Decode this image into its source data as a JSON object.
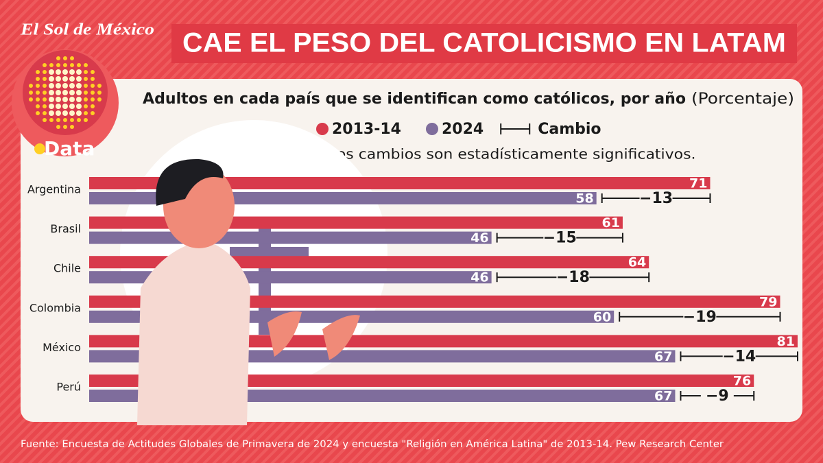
{
  "brand": "El Sol de México",
  "brand_section": "Data",
  "chart_data": {
    "type": "bar",
    "orientation": "horizontal",
    "title": "CAE EL PESO DEL CATOLICISMO EN LATAM",
    "subtitle": "Adultos en cada país que se identifican como católicos, por año",
    "unit_note": "(Porcentaje)",
    "note": "Nota: Todos los cambios son estadísticamente significativos.",
    "source": "Fuente: Encuesta de Actitudes Globales de Primavera de 2024 y encuesta \"Religión en América Latina\" de 2013-14.  Pew Research Center",
    "categories": [
      "Argentina",
      "Brasil",
      "Chile",
      "Colombia",
      "México",
      "Perú"
    ],
    "series": [
      {
        "name": "2013-14",
        "color": "#d83a4b",
        "values": [
          71,
          61,
          64,
          79,
          81,
          76
        ]
      },
      {
        "name": "2024",
        "color": "#7f6d9c",
        "values": [
          58,
          46,
          46,
          60,
          67,
          67
        ]
      }
    ],
    "change": {
      "name": "Cambio",
      "values": [
        -13,
        -15,
        -18,
        -19,
        -14,
        -9
      ],
      "value_labels": [
        "−13",
        "−15",
        "−18",
        "−19",
        "−14",
        "−9"
      ]
    },
    "xlim": [
      0,
      81
    ]
  }
}
